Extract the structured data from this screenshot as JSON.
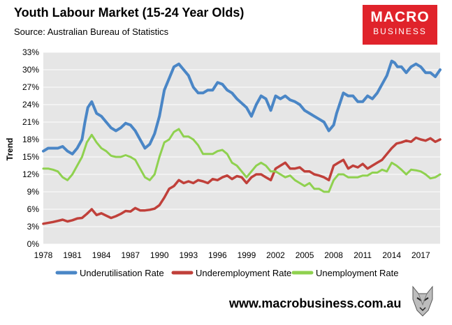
{
  "header": {
    "title": "Youth Labour Market (15-24 Year Olds)",
    "subtitle": "Source: Australian Bureau of Statistics"
  },
  "logo": {
    "line1": "MACRO",
    "line2": "BUSINESS"
  },
  "footer": {
    "url": "www.macrobusiness.com.au"
  },
  "colors": {
    "underutilisation": "#4a86c6",
    "underemployment": "#c0403a",
    "unemployment": "#8fd14f",
    "plot_bg": "#e6e6e6",
    "grid": "#ffffff"
  },
  "chart_data": {
    "type": "line",
    "title": "Youth Labour Market (15-24 Year Olds)",
    "subtitle": "Source: Australian Bureau of Statistics",
    "ylabel": "Trend",
    "xlabel": "",
    "xlim": [
      1978,
      2019
    ],
    "ylim": [
      0,
      33
    ],
    "x_ticks": [
      "1978",
      "1981",
      "1984",
      "1987",
      "1990",
      "1993",
      "1996",
      "1999",
      "2002",
      "2005",
      "2008",
      "2011",
      "2014",
      "2017"
    ],
    "y_ticks": [
      "0%",
      "3%",
      "6%",
      "9%",
      "12%",
      "15%",
      "18%",
      "21%",
      "24%",
      "27%",
      "30%",
      "33%"
    ],
    "grid": true,
    "legend_position": "bottom",
    "series": [
      {
        "name": "Underutilisation Rate",
        "x": [
          1978,
          1978.5,
          1979.5,
          1980,
          1980.5,
          1981,
          1981.5,
          1982,
          1982.3,
          1982.6,
          1983,
          1983.5,
          1984,
          1984.5,
          1985,
          1985.5,
          1986,
          1986.5,
          1987,
          1987.5,
          1988,
          1988.5,
          1989,
          1989.5,
          1990,
          1990.5,
          1991,
          1991.5,
          1992,
          1992.5,
          1993,
          1993.5,
          1994,
          1994.5,
          1995,
          1995.5,
          1996,
          1996.5,
          1997,
          1997.5,
          1998,
          1999,
          1999.5,
          2000,
          2000.5,
          2001,
          2001.5,
          2002,
          2002.5,
          2003,
          2003.5,
          2004,
          2004.5,
          2005,
          2005.5,
          2006,
          2006.5,
          2007,
          2007.5,
          2008,
          2008.3,
          2009,
          2009.5,
          2010,
          2010.5,
          2011,
          2011.5,
          2012,
          2012.5,
          2013,
          2013.5,
          2014,
          2014.3,
          2014.6,
          2015,
          2015.5,
          2016,
          2016.5,
          2017,
          2017.5,
          2018,
          2018.5,
          2019
        ],
        "y": [
          16.0,
          16.5,
          16.5,
          16.8,
          16.0,
          15.5,
          16.5,
          18.0,
          21.0,
          23.5,
          24.5,
          22.5,
          22.0,
          21.0,
          20.0,
          19.5,
          20.0,
          20.8,
          20.5,
          19.5,
          18.0,
          16.5,
          17.2,
          19.0,
          22.0,
          26.5,
          28.5,
          30.5,
          31.0,
          30.0,
          29.0,
          27.0,
          26.0,
          26.0,
          26.5,
          26.5,
          27.8,
          27.5,
          26.5,
          26.0,
          25.0,
          23.5,
          22.0,
          24.0,
          25.5,
          25.0,
          23.0,
          25.5,
          25.0,
          25.5,
          24.8,
          24.5,
          24.0,
          23.0,
          22.5,
          22.0,
          21.5,
          21.0,
          19.5,
          20.5,
          22.5,
          26.0,
          25.5,
          25.5,
          24.5,
          24.5,
          25.5,
          25.0,
          26.0,
          27.5,
          29.0,
          31.5,
          31.2,
          30.5,
          30.5,
          29.5,
          30.5,
          31.0,
          30.5,
          29.5,
          29.5,
          28.8,
          30.0
        ]
      },
      {
        "name": "Underemployment Rate",
        "x": [
          1978,
          1979,
          1979.5,
          1980,
          1980.5,
          1981,
          1981.5,
          1982,
          1982.5,
          1983,
          1983.5,
          1984,
          1984.5,
          1985,
          1985.5,
          1986,
          1986.5,
          1987,
          1987.5,
          1988,
          1988.5,
          1989,
          1989.5,
          1990,
          1990.5,
          1991,
          1991.5,
          1992,
          1992.5,
          1993,
          1993.5,
          1994,
          1994.5,
          1995,
          1995.5,
          1996,
          1996.5,
          1997,
          1997.5,
          1998,
          1998.5,
          1999,
          1999.5,
          2000,
          2000.5,
          2001,
          2001.5,
          2002,
          2002.5,
          2003,
          2003.5,
          2004,
          2004.5,
          2005,
          2005.5,
          2006,
          2006.5,
          2007,
          2007.5,
          2008,
          2008.5,
          2009,
          2009.5,
          2010,
          2010.5,
          2011,
          2011.5,
          2012,
          2012.5,
          2013,
          2013.5,
          2014,
          2014.5,
          2015,
          2015.5,
          2016,
          2016.5,
          2017,
          2017.5,
          2018,
          2018.5,
          2019
        ],
        "y": [
          3.5,
          3.8,
          4.0,
          4.2,
          3.9,
          4.1,
          4.4,
          4.5,
          5.2,
          6.0,
          5.0,
          5.3,
          4.9,
          4.5,
          4.8,
          5.2,
          5.7,
          5.6,
          6.2,
          5.8,
          5.8,
          5.9,
          6.1,
          6.7,
          8.0,
          9.5,
          10.0,
          11.0,
          10.5,
          10.8,
          10.5,
          11.0,
          10.8,
          10.5,
          11.2,
          11.0,
          11.5,
          11.8,
          11.2,
          11.7,
          11.5,
          10.5,
          11.5,
          12.0,
          12.0,
          11.5,
          11.0,
          13.0,
          13.5,
          14.0,
          13.0,
          13.0,
          13.2,
          12.5,
          12.5,
          12.0,
          11.8,
          11.5,
          11.0,
          13.5,
          14.0,
          14.5,
          13.0,
          13.5,
          13.2,
          13.8,
          13.0,
          13.5,
          14.0,
          14.5,
          15.5,
          16.5,
          17.3,
          17.5,
          17.8,
          17.6,
          18.3,
          18.0,
          17.8,
          18.2,
          17.6,
          18.0
        ]
      },
      {
        "name": "Unemployment Rate",
        "x": [
          1978,
          1978.5,
          1979,
          1979.5,
          1980,
          1980.5,
          1981,
          1981.5,
          1982,
          1982.5,
          1983,
          1983.5,
          1984,
          1984.5,
          1985,
          1985.5,
          1986,
          1986.5,
          1987,
          1987.5,
          1988,
          1988.5,
          1989,
          1989.5,
          1990,
          1990.5,
          1991,
          1991.5,
          1992,
          1992.5,
          1993,
          1993.5,
          1994,
          1994.5,
          1995,
          1995.5,
          1996,
          1996.5,
          1997,
          1997.5,
          1998,
          1999,
          1999.5,
          2000,
          2000.5,
          2001,
          2001.5,
          2002,
          2002.5,
          2003,
          2003.5,
          2004,
          2004.5,
          2005,
          2005.5,
          2006,
          2006.5,
          2007,
          2007.5,
          2008,
          2008.5,
          2009,
          2009.5,
          2010,
          2010.5,
          2011,
          2011.5,
          2012,
          2012.5,
          2013,
          2013.5,
          2014,
          2014.5,
          2015,
          2015.5,
          2016,
          2016.5,
          2017,
          2017.5,
          2018,
          2018.5,
          2019
        ],
        "y": [
          13.0,
          13.0,
          12.8,
          12.5,
          11.5,
          11.0,
          12.0,
          13.5,
          15.0,
          17.5,
          18.8,
          17.5,
          16.5,
          16.0,
          15.2,
          15.0,
          15.0,
          15.3,
          15.0,
          14.5,
          13.0,
          11.5,
          11.0,
          12.0,
          15.0,
          17.5,
          18.0,
          19.3,
          19.8,
          18.5,
          18.5,
          18.0,
          17.0,
          15.5,
          15.5,
          15.5,
          16.0,
          16.2,
          15.5,
          14.0,
          13.5,
          11.5,
          12.5,
          13.5,
          14.0,
          13.5,
          12.5,
          12.5,
          12.0,
          11.5,
          11.8,
          11.0,
          10.5,
          10.0,
          10.5,
          9.5,
          9.5,
          9.0,
          9.0,
          11.0,
          12.0,
          12.0,
          11.5,
          11.5,
          11.5,
          11.8,
          11.8,
          12.3,
          12.3,
          12.8,
          12.5,
          14.0,
          13.5,
          12.8,
          12.0,
          12.8,
          12.7,
          12.5,
          12.0,
          11.3,
          11.5,
          12.0
        ]
      }
    ]
  }
}
